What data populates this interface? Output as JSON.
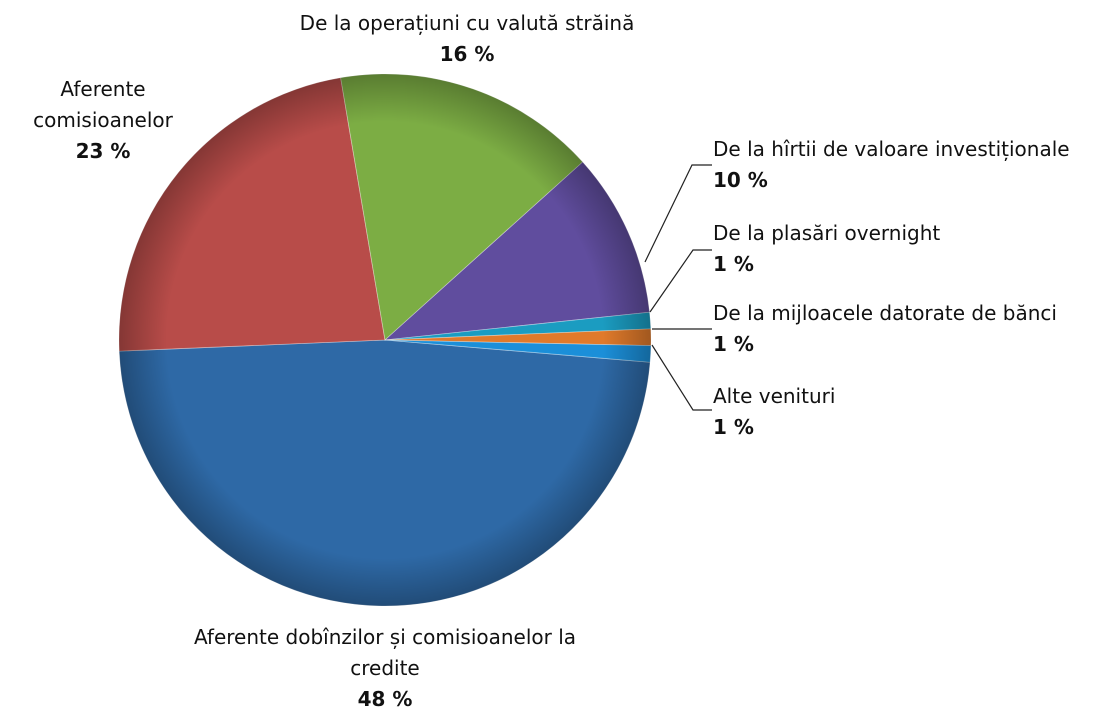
{
  "chart_data": {
    "type": "pie",
    "categories": [
      "Aferente dobînzilor și comisioanelor la credite",
      "Aferente comisioanelor",
      "De la operațiuni cu valută străină",
      "De la hîrtii de valoare investiționale",
      "De la plasări overnight",
      "De la mijloacele datorate de bănci",
      "Alte venituri"
    ],
    "values": [
      48,
      23,
      16,
      10,
      1,
      1,
      1
    ],
    "value_labels": [
      "48 %",
      "23 %",
      "16 %",
      "10 %",
      "1 %",
      "1 %",
      "1 %"
    ],
    "colors": [
      "#2e69a6",
      "#b84c49",
      "#7cad44",
      "#604d9e",
      "#1b9cc1",
      "#e07a2b",
      "#1b8fd9"
    ]
  }
}
